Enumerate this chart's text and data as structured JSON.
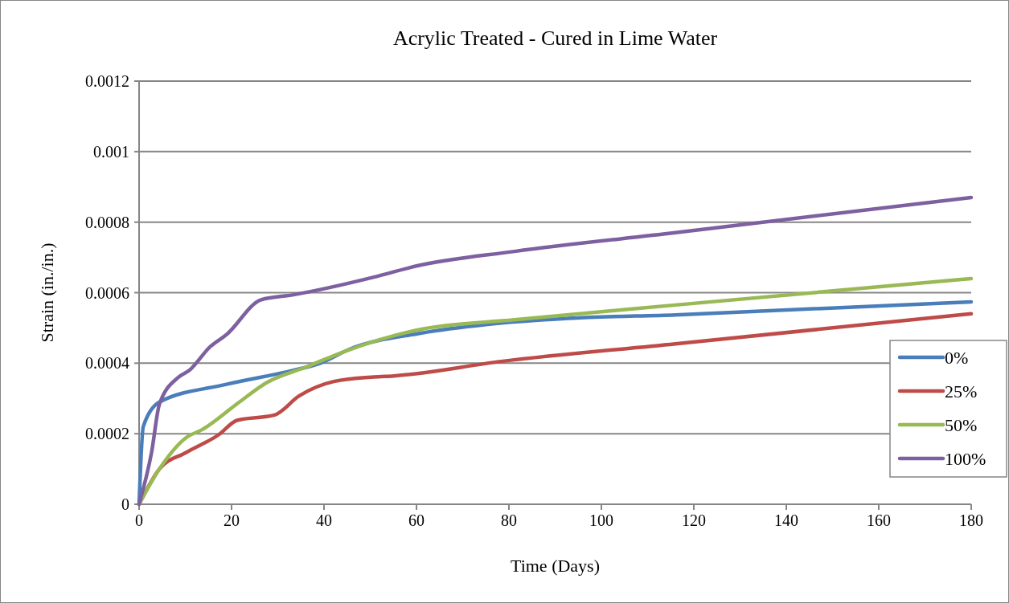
{
  "chart_data": {
    "type": "line",
    "title": "Acrylic Treated - Cured in Lime Water",
    "xlabel": "Time (Days)",
    "ylabel": "Strain (in./in.)",
    "xlim": [
      0,
      180
    ],
    "xticks": [
      0,
      20,
      40,
      60,
      80,
      100,
      120,
      140,
      160,
      180
    ],
    "ylim": [
      0,
      0.0012
    ],
    "yticks": [
      0,
      0.0002,
      0.0004,
      0.0006,
      0.0008,
      0.001,
      0.0012
    ],
    "grid": "y",
    "legend": "right",
    "marker": "none",
    "line_style": "solid",
    "series": [
      {
        "name": "0%",
        "color": "#4a7ebb",
        "x": [
          0,
          0.9,
          4.4,
          18.9,
          33.4,
          39.2,
          45.6,
          60.9,
          75.4,
          92.8,
          116,
          180
        ],
        "values": [
          0,
          0.00022,
          0.00029,
          0.00034,
          0.00038,
          0.0004,
          0.00044,
          0.000485,
          0.00051,
          0.000527,
          0.000537,
          0.000574
        ]
      },
      {
        "name": "25%",
        "color": "#be4b48",
        "x": [
          0,
          4.4,
          10.2,
          17.2,
          21.2,
          29.3,
          34.6,
          42.1,
          50.8,
          55.1,
          78.3,
          116,
          180
        ],
        "values": [
          0,
          0.0001,
          0.000147,
          0.000197,
          0.000238,
          0.000253,
          0.000307,
          0.000348,
          0.000361,
          0.000364,
          0.000405,
          0.000455,
          0.00054
        ]
      },
      {
        "name": "50%",
        "color": "#98b954",
        "x": [
          0,
          4.4,
          10.2,
          13.7,
          21.8,
          27.6,
          36.3,
          45,
          60.9,
          81.2,
          116,
          180
        ],
        "values": [
          0,
          0.0001,
          0.000189,
          0.000212,
          0.000291,
          0.000345,
          0.00039,
          0.000436,
          0.000496,
          0.000523,
          0.000565,
          0.00064
        ]
      },
      {
        "name": "100%",
        "color": "#7d60a0",
        "x": [
          0,
          2.7,
          4.4,
          8.5,
          10.8,
          15.4,
          18.9,
          26.4,
          33.4,
          50.8,
          59.8,
          81.2,
          116,
          180
        ],
        "values": [
          0,
          0.000147,
          0.000284,
          0.00036,
          0.000379,
          0.000447,
          0.000481,
          0.00058,
          0.000594,
          0.000644,
          0.000675,
          0.000717,
          0.00077,
          0.00087
        ]
      }
    ]
  }
}
